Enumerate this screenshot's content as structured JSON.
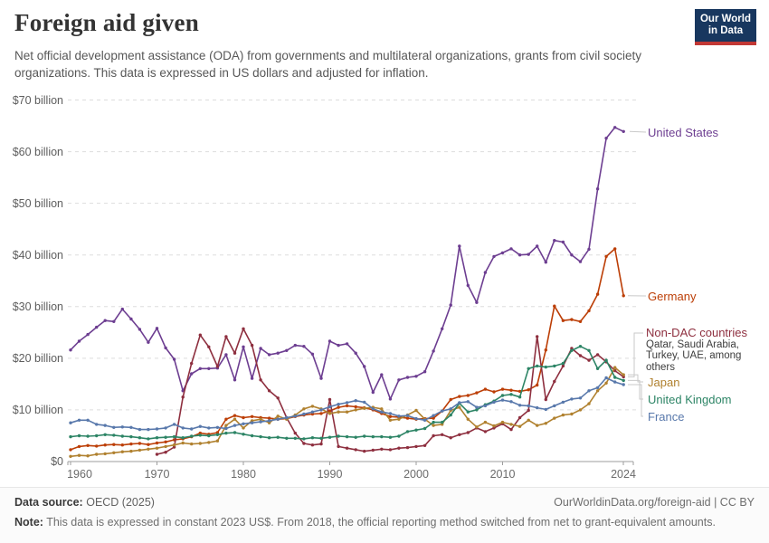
{
  "header": {
    "title": "Foreign aid given",
    "subtitle": "Net official development assistance (ODA) from governments and multilateral organizations, grants from civil society organizations. This data is expressed in US dollars and adjusted for inflation.",
    "logo": {
      "line1": "Our World",
      "line2": "in Data"
    }
  },
  "chart_data": {
    "type": "line",
    "title": "Foreign aid given",
    "x_start": 1960,
    "x_end": 2024,
    "ylim": [
      0,
      70
    ],
    "grid": "dashed-horizontal",
    "legend_position": "right-of-line-labels",
    "y_tick_labels": [
      "$0",
      "$10 billion",
      "$20 billion",
      "$30 billion",
      "$40 billion",
      "$50 billion",
      "$60 billion",
      "$70 billion"
    ],
    "x_tick_labels": [
      "1960",
      "1970",
      "1980",
      "1990",
      "2000",
      "2010",
      "2024"
    ],
    "series": [
      {
        "name": "United States",
        "color": "#6d3e91",
        "values": [
          21.6,
          23.3,
          24.6,
          26.0,
          27.3,
          27.1,
          29.5,
          27.6,
          25.6,
          23.1,
          25.8,
          22.0,
          19.8,
          13.7,
          17.0,
          18.0,
          18.0,
          18.1,
          20.7,
          15.8,
          22.2,
          16.1,
          21.9,
          20.7,
          21.0,
          21.5,
          22.5,
          22.3,
          20.8,
          16.1,
          23.3,
          22.5,
          22.8,
          21.0,
          18.4,
          13.4,
          16.8,
          12.1,
          15.8,
          16.3,
          16.5,
          17.4,
          21.4,
          25.7,
          30.3,
          41.7,
          34.1,
          30.8,
          36.6,
          39.7,
          40.4,
          41.2,
          40.0,
          40.1,
          41.7,
          38.6,
          42.8,
          42.5,
          40.0,
          38.7,
          41.1,
          52.8,
          62.6,
          64.7,
          63.9
        ]
      },
      {
        "name": "Germany",
        "color": "#bc3e06",
        "values": [
          2.3,
          2.9,
          3.1,
          3.0,
          3.2,
          3.3,
          3.2,
          3.4,
          3.5,
          3.3,
          3.6,
          3.8,
          4.2,
          4.4,
          4.8,
          5.5,
          5.3,
          5.6,
          8.2,
          8.9,
          8.5,
          8.7,
          8.5,
          8.4,
          8.2,
          8.3,
          8.7,
          9.0,
          9.2,
          9.3,
          9.8,
          10.5,
          10.8,
          10.6,
          10.4,
          10.0,
          9.3,
          8.7,
          8.6,
          8.4,
          8.2,
          8.3,
          8.4,
          9.8,
          12.0,
          12.6,
          12.8,
          13.3,
          14.0,
          13.5,
          14.0,
          13.8,
          13.6,
          13.9,
          14.8,
          21.6,
          30.1,
          27.3,
          27.5,
          27.1,
          29.2,
          32.4,
          39.7,
          41.2,
          32.1
        ]
      },
      {
        "name": "Non-DAC countries",
        "sublabel": "Qatar, Saudi Arabia, Turkey, UAE, among others",
        "color": "#8e2f3f",
        "values": [
          null,
          null,
          null,
          null,
          null,
          null,
          null,
          null,
          null,
          null,
          1.4,
          1.8,
          2.8,
          12.5,
          19.0,
          24.5,
          22.2,
          18.4,
          24.2,
          21.0,
          25.7,
          22.5,
          15.8,
          13.7,
          12.3,
          8.5,
          5.5,
          3.5,
          3.2,
          3.4,
          12.0,
          2.9,
          2.6,
          2.3,
          2.0,
          2.2,
          2.4,
          2.3,
          2.6,
          2.7,
          2.9,
          3.1,
          5.0,
          5.2,
          4.6,
          5.2,
          5.6,
          6.5,
          5.8,
          6.5,
          7.3,
          6.2,
          8.5,
          9.9,
          24.2,
          12.0,
          15.5,
          18.5,
          21.9,
          20.5,
          19.6,
          20.7,
          19.3,
          17.6,
          16.4
        ]
      },
      {
        "name": "Japan",
        "color": "#b0812f",
        "values": [
          1.0,
          1.2,
          1.1,
          1.4,
          1.5,
          1.7,
          1.9,
          2.0,
          2.2,
          2.4,
          2.6,
          2.9,
          3.2,
          3.6,
          3.4,
          3.5,
          3.7,
          4.0,
          7.0,
          8.2,
          6.5,
          7.9,
          8.2,
          7.5,
          8.8,
          8.2,
          9.0,
          10.2,
          10.7,
          10.2,
          9.3,
          9.6,
          9.6,
          10.0,
          10.3,
          10.5,
          10.2,
          8.0,
          8.2,
          9.0,
          9.9,
          8.2,
          7.0,
          7.2,
          9.9,
          10.5,
          8.2,
          6.7,
          7.6,
          6.9,
          7.6,
          7.2,
          6.8,
          8.0,
          7.0,
          7.4,
          8.4,
          9.0,
          9.2,
          10.0,
          11.2,
          13.7,
          15.2,
          18.2,
          16.8
        ]
      },
      {
        "name": "United Kingdom",
        "color": "#2c8465",
        "values": [
          4.8,
          5.0,
          4.9,
          5.0,
          5.2,
          5.1,
          4.9,
          4.8,
          4.6,
          4.4,
          4.6,
          4.7,
          4.8,
          4.6,
          4.9,
          5.1,
          5.0,
          5.2,
          5.5,
          5.6,
          5.3,
          5.0,
          4.8,
          4.6,
          4.7,
          4.5,
          4.5,
          4.4,
          4.6,
          4.5,
          4.7,
          4.9,
          4.8,
          4.7,
          4.9,
          4.8,
          4.8,
          4.7,
          4.9,
          5.8,
          6.1,
          6.4,
          7.6,
          7.6,
          9.0,
          11.3,
          9.6,
          10.0,
          11.0,
          11.7,
          12.8,
          13.0,
          12.5,
          18.0,
          18.5,
          18.3,
          18.5,
          19.0,
          21.5,
          22.3,
          21.5,
          18.0,
          19.6,
          16.3,
          15.7
        ]
      },
      {
        "name": "France",
        "color": "#5878ab",
        "values": [
          7.5,
          8.0,
          8.0,
          7.2,
          7.0,
          6.6,
          6.7,
          6.6,
          6.2,
          6.2,
          6.3,
          6.5,
          7.2,
          6.5,
          6.3,
          6.8,
          6.5,
          6.6,
          6.4,
          7.0,
          7.3,
          7.5,
          7.7,
          7.9,
          8.2,
          8.5,
          8.8,
          9.2,
          9.6,
          10.0,
          10.6,
          11.1,
          11.4,
          11.8,
          11.5,
          10.2,
          9.6,
          9.3,
          8.8,
          8.9,
          8.3,
          8.0,
          8.9,
          9.8,
          10.2,
          11.4,
          11.6,
          10.5,
          10.8,
          11.5,
          11.9,
          11.6,
          10.9,
          10.8,
          10.4,
          10.1,
          10.8,
          11.5,
          12.1,
          12.3,
          13.7,
          14.3,
          16.2,
          15.4,
          14.9
        ]
      }
    ]
  },
  "footer": {
    "source_label": "Data source:",
    "source_value": "OECD (2025)",
    "cc_text": "OurWorldinData.org/foreign-aid | CC BY",
    "note_label": "Note:",
    "note_text": "This data is expressed in constant 2023 US$. From 2018, the official reporting method switched from net to grant-equivalent amounts."
  }
}
